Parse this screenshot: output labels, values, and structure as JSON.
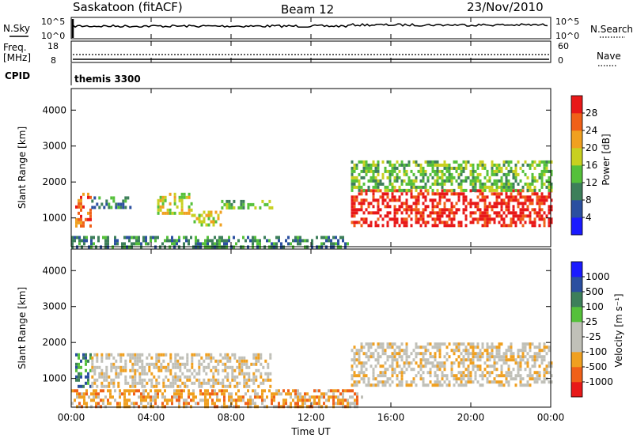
{
  "header": {
    "station": "Saskatoon (fitACF)",
    "beam": "Beam 12",
    "date": "23/Nov/2010"
  },
  "nsky_panel": {
    "left_label": "N.Sky",
    "right_label": "N.Search",
    "left_ticks": [
      "10^5",
      "10^0"
    ],
    "right_ticks": [
      "10^5",
      "10^0"
    ]
  },
  "freq_panel": {
    "left_label_1": "Freq.",
    "left_label_2": "[MHz]",
    "right_label": "Nave",
    "left_ticks": [
      "18",
      "8"
    ],
    "right_ticks": [
      "60",
      "0"
    ]
  },
  "cpid": {
    "label": "CPID",
    "program": "themis 3300"
  },
  "time_axis": {
    "title": "Time UT",
    "ticks": [
      "00:00",
      "04:00",
      "08:00",
      "12:00",
      "16:00",
      "20:00",
      "00:00"
    ]
  },
  "colors": {
    "power_scale": [
      "#1a1aff",
      "#2b4fa0",
      "#3d7f5a",
      "#55c03a",
      "#c8d020",
      "#f0a020",
      "#f06018",
      "#e81818"
    ],
    "velocity_scale": [
      "#e81818",
      "#f06018",
      "#f0a020",
      "#c0c0b8",
      "#c0c0b8",
      "#55c03a",
      "#3d7f5a",
      "#2b4fa0",
      "#1a1aff"
    ]
  },
  "chart_data": [
    {
      "type": "heatmap",
      "name": "power",
      "ylabel": "Slant Range [km]",
      "yticks": [
        "1000",
        "2000",
        "3000",
        "4000"
      ],
      "ylim": [
        200,
        4600
      ],
      "xlim_hours": [
        0,
        24
      ],
      "colorbar_label": "Power [dB]",
      "colorbar_ticks": [
        "4",
        "8",
        "12",
        "16",
        "20",
        "24",
        "28"
      ],
      "regions": [
        {
          "t": [
            0.2,
            1.0
          ],
          "range": [
            800,
            1700
          ],
          "value_db": 24
        },
        {
          "t": [
            1.0,
            3.0
          ],
          "range": [
            1300,
            1600
          ],
          "value_db": 8
        },
        {
          "t": [
            4.3,
            6.0
          ],
          "range": [
            1100,
            1700
          ],
          "value_db": 14
        },
        {
          "t": [
            6.0,
            7.5
          ],
          "range": [
            800,
            1200
          ],
          "value_db": 16
        },
        {
          "t": [
            7.5,
            10.0
          ],
          "range": [
            1300,
            1500
          ],
          "value_db": 10
        },
        {
          "t": [
            0.0,
            14.0
          ],
          "range": [
            200,
            500
          ],
          "value_db": 6
        },
        {
          "t": [
            14.0,
            24.0
          ],
          "range": [
            800,
            1800
          ],
          "value_db": 26
        },
        {
          "t": [
            14.0,
            24.0
          ],
          "range": [
            1800,
            2600
          ],
          "value_db": 10
        }
      ]
    },
    {
      "type": "heatmap",
      "name": "velocity",
      "ylabel": "Slant Range [km]",
      "yticks": [
        "1000",
        "2000",
        "3000",
        "4000"
      ],
      "ylim": [
        200,
        4600
      ],
      "xlim_hours": [
        0,
        24
      ],
      "colorbar_label": "Velocity [m s⁻¹]",
      "colorbar_ticks": [
        "1000",
        "500",
        "100",
        "25",
        "-25",
        "-100",
        "-500",
        "-1000"
      ],
      "regions": [
        {
          "t": [
            0.2,
            1.0
          ],
          "range": [
            800,
            1700
          ],
          "value_ms": 200
        },
        {
          "t": [
            1.0,
            10.0
          ],
          "range": [
            800,
            1700
          ],
          "value_ms": 0
        },
        {
          "t": [
            0.0,
            14.5
          ],
          "range": [
            200,
            700
          ],
          "value_ms": -150
        },
        {
          "t": [
            14.0,
            24.0
          ],
          "range": [
            800,
            2000
          ],
          "value_ms": 0
        }
      ]
    }
  ]
}
